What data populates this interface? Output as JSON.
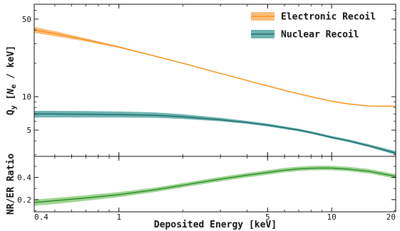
{
  "chart_data": [
    {
      "type": "line",
      "panel": "top",
      "ylabel_parts": {
        "q": "Q",
        "q_sub": "y",
        "open": " [",
        "n": "N",
        "n_sub": "e",
        "unit": " / keV]"
      },
      "x_scale": "log",
      "y_scale": "log",
      "xlim": [
        0.4,
        20
      ],
      "ylim": [
        2.9,
        68
      ],
      "yticks": [
        5,
        10,
        50
      ],
      "ytick_labels": [
        "5",
        "10",
        "50"
      ],
      "legend_position": "top-right",
      "series": [
        {
          "name": "Electronic Recoil",
          "color": "#f5921e",
          "band_color": "#f9be7c",
          "x": [
            0.4,
            0.5,
            0.7,
            1.0,
            1.5,
            2.0,
            3.0,
            4.0,
            5.0,
            6.0,
            7.0,
            8.0,
            10.0,
            12.0,
            15.0,
            20.0
          ],
          "y": [
            40.0,
            37.0,
            32.5,
            28.0,
            23.0,
            20.0,
            16.2,
            14.0,
            12.5,
            11.4,
            10.6,
            10.0,
            9.1,
            8.6,
            8.25,
            8.2
          ],
          "band_lo": [
            37.6,
            35.0,
            31.5,
            27.5,
            22.8,
            19.9,
            16.1,
            13.9,
            12.4,
            11.3,
            10.5,
            9.9,
            9.0,
            8.5,
            8.2,
            8.15
          ],
          "band_hi": [
            42.6,
            39.0,
            33.5,
            28.5,
            23.2,
            20.1,
            16.3,
            14.1,
            12.6,
            11.5,
            10.7,
            10.1,
            9.2,
            8.7,
            8.3,
            8.25
          ]
        },
        {
          "name": "Nuclear Recoil",
          "color": "#1f6e6a",
          "band_color": "#6fb3b0",
          "x": [
            0.4,
            0.5,
            0.7,
            1.0,
            1.5,
            2.0,
            3.0,
            4.0,
            5.0,
            6.0,
            7.0,
            8.0,
            10.0,
            12.0,
            15.0,
            20.0
          ],
          "y": [
            7.0,
            7.0,
            6.95,
            6.9,
            6.8,
            6.6,
            6.2,
            5.85,
            5.55,
            5.25,
            5.0,
            4.75,
            4.3,
            4.0,
            3.6,
            3.1
          ],
          "band_lo": [
            6.5,
            6.5,
            6.5,
            6.5,
            6.45,
            6.3,
            6.0,
            5.7,
            5.4,
            5.12,
            4.88,
            4.64,
            4.2,
            3.9,
            3.52,
            3.0
          ],
          "band_hi": [
            7.45,
            7.45,
            7.42,
            7.35,
            7.2,
            6.95,
            6.45,
            6.05,
            5.72,
            5.4,
            5.14,
            4.88,
            4.42,
            4.12,
            3.72,
            3.24
          ]
        }
      ]
    },
    {
      "type": "line",
      "panel": "bottom",
      "ylabel": "NR/ER Ratio",
      "xlabel": "Deposited Energy [keV]",
      "x_scale": "log",
      "xlim": [
        0.4,
        20
      ],
      "ylim": [
        0.09,
        0.59
      ],
      "xticks": [
        0.4,
        1,
        5,
        10,
        20
      ],
      "xtick_labels": [
        "0.4",
        "1",
        "5",
        "10",
        "20"
      ],
      "yticks": [
        0.2,
        0.4
      ],
      "ytick_labels": [
        "0.2",
        "0.4"
      ],
      "series": [
        {
          "name": "",
          "color": "#2e8b2e",
          "band_color": "#9fd592",
          "x": [
            0.4,
            0.5,
            0.7,
            1.0,
            1.5,
            2.0,
            3.0,
            4.0,
            5.0,
            6.0,
            7.0,
            8.0,
            9.0,
            10.0,
            12.0,
            15.0,
            20.0
          ],
          "y": [
            0.175,
            0.19,
            0.215,
            0.245,
            0.29,
            0.33,
            0.385,
            0.42,
            0.445,
            0.465,
            0.477,
            0.483,
            0.485,
            0.484,
            0.475,
            0.455,
            0.41
          ],
          "band_lo": [
            0.145,
            0.16,
            0.19,
            0.222,
            0.27,
            0.31,
            0.365,
            0.4,
            0.425,
            0.446,
            0.458,
            0.464,
            0.466,
            0.465,
            0.456,
            0.436,
            0.39
          ],
          "band_hi": [
            0.2,
            0.215,
            0.24,
            0.268,
            0.31,
            0.35,
            0.405,
            0.44,
            0.466,
            0.486,
            0.498,
            0.504,
            0.506,
            0.505,
            0.496,
            0.476,
            0.43
          ]
        }
      ]
    }
  ]
}
